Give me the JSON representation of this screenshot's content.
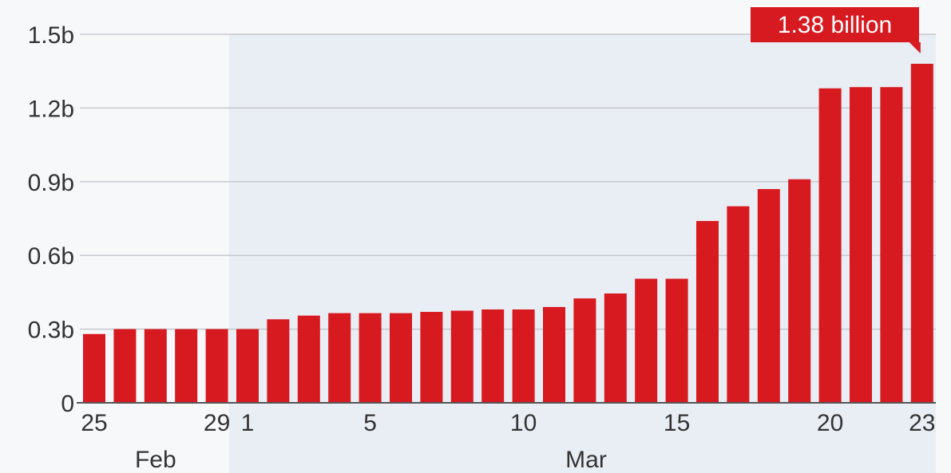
{
  "chart_data": {
    "type": "bar",
    "title": "",
    "xlabel": "",
    "ylabel": "",
    "categories": [
      "Feb 25",
      "Feb 26",
      "Feb 27",
      "Feb 28",
      "Feb 29",
      "Mar 1",
      "Mar 2",
      "Mar 3",
      "Mar 4",
      "Mar 5",
      "Mar 6",
      "Mar 7",
      "Mar 8",
      "Mar 9",
      "Mar 10",
      "Mar 11",
      "Mar 12",
      "Mar 13",
      "Mar 14",
      "Mar 15",
      "Mar 16",
      "Mar 17",
      "Mar 18",
      "Mar 19",
      "Mar 20",
      "Mar 21",
      "Mar 22",
      "Mar 23"
    ],
    "values": [
      0.28,
      0.3,
      0.3,
      0.3,
      0.3,
      0.3,
      0.34,
      0.355,
      0.365,
      0.365,
      0.365,
      0.37,
      0.375,
      0.38,
      0.38,
      0.39,
      0.425,
      0.445,
      0.505,
      0.505,
      0.74,
      0.8,
      0.87,
      0.91,
      1.28,
      1.285,
      1.285,
      1.38
    ],
    "units": "billion",
    "ylim": [
      0,
      1.5
    ],
    "yticks": [
      0,
      0.3,
      0.6,
      0.9,
      1.2,
      1.5
    ],
    "ytick_labels": [
      "0",
      "0.3b",
      "0.6b",
      "0.9b",
      "1.2b",
      "1.5b"
    ],
    "xtick_labels": [
      {
        "category": "Feb 25",
        "label": "25"
      },
      {
        "category": "Feb 29",
        "label": "29"
      },
      {
        "category": "Mar 1",
        "label": "1"
      },
      {
        "category": "Mar 5",
        "label": "5"
      },
      {
        "category": "Mar 10",
        "label": "10"
      },
      {
        "category": "Mar 15",
        "label": "15"
      },
      {
        "category": "Mar 20",
        "label": "20"
      },
      {
        "category": "Mar 23",
        "label": "23"
      }
    ],
    "month_labels": [
      {
        "label": "Feb",
        "from": "Feb 25",
        "to": "Feb 29"
      },
      {
        "label": "Mar",
        "from": "Mar 1",
        "to": "Mar 23"
      }
    ],
    "grid": true,
    "highlight_region": {
      "from": "Mar 1",
      "to": "Mar 23"
    },
    "annotation": {
      "category": "Mar 23",
      "text": "1.38 billion"
    },
    "colors": {
      "bar": "#d71920",
      "callout": "#d71920",
      "background": "#f7f8fa",
      "highlight": "#e9eef5",
      "grid": "#c6c9ce",
      "axis": "#555555",
      "text": "#333333"
    }
  }
}
